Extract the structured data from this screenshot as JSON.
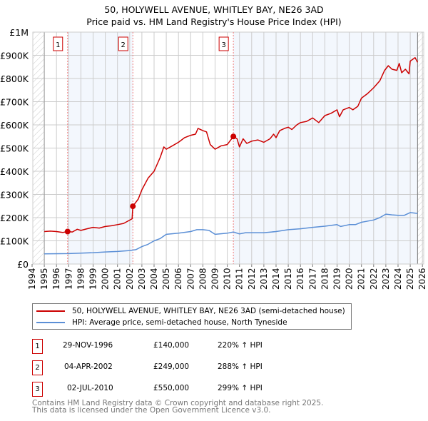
{
  "title_line1": "50, HOLYWELL AVENUE, WHITLEY BAY, NE26 3AD",
  "title_line2": "Price paid vs. HM Land Registry's House Price Index (HPI)",
  "legend": [
    {
      "label": "50, HOLYWELL AVENUE, WHITLEY BAY, NE26 3AD (semi-detached house)",
      "color": "#cc0000"
    },
    {
      "label": "HPI: Average price, semi-detached house, North Tyneside",
      "color": "#5b8fd6"
    }
  ],
  "sales": [
    {
      "num": "1",
      "date": "29-NOV-1996",
      "price": "£140,000",
      "hpi": "220% ↑ HPI"
    },
    {
      "num": "2",
      "date": "04-APR-2002",
      "price": "£249,000",
      "hpi": "288% ↑ HPI"
    },
    {
      "num": "3",
      "date": "02-JUL-2010",
      "price": "£550,000",
      "hpi": "299% ↑ HPI"
    }
  ],
  "footer_line1": "Contains HM Land Registry data © Crown copyright and database right 2025.",
  "footer_line2": "This data is licensed under the Open Government Licence v3.0.",
  "chart_data": {
    "type": "line",
    "xlim": [
      1994,
      2026
    ],
    "ylim": [
      0,
      1000000
    ],
    "x_ticks": [
      "1994",
      "1995",
      "1996",
      "1997",
      "1998",
      "1999",
      "2000",
      "2001",
      "2002",
      "2003",
      "2004",
      "2005",
      "2006",
      "2007",
      "2008",
      "2009",
      "2010",
      "2011",
      "2012",
      "2013",
      "2014",
      "2015",
      "2016",
      "2017",
      "2018",
      "2019",
      "2020",
      "2021",
      "2022",
      "2023",
      "2024",
      "2025",
      "2026"
    ],
    "y_ticks": [
      {
        "v": 0,
        "label": "£0"
      },
      {
        "v": 100000,
        "label": "£100K"
      },
      {
        "v": 200000,
        "label": "£200K"
      },
      {
        "v": 300000,
        "label": "£300K"
      },
      {
        "v": 400000,
        "label": "£400K"
      },
      {
        "v": 500000,
        "label": "£500K"
      },
      {
        "v": 600000,
        "label": "£600K"
      },
      {
        "v": 700000,
        "label": "£700K"
      },
      {
        "v": 800000,
        "label": "£800K"
      },
      {
        "v": 900000,
        "label": "£900K"
      },
      {
        "v": 1000000,
        "label": "£1M"
      }
    ],
    "data_start": 1995,
    "data_end": 2025.6,
    "sale_points": [
      {
        "x": 1996.91,
        "y": 140000
      },
      {
        "x": 2002.26,
        "y": 249000
      },
      {
        "x": 2010.5,
        "y": 550000
      }
    ],
    "series": [
      {
        "name": "50, HOLYWELL AVENUE, WHITLEY BAY, NE26 3AD (semi-detached house)",
        "color": "#cc0000",
        "x": [
          1995,
          1995.5,
          1996,
          1996.5,
          1996.91,
          1997.3,
          1997.7,
          1998,
          1998.5,
          1999,
          1999.5,
          2000,
          2000.5,
          2001,
          2001.5,
          2002.2,
          2002.26,
          2002.7,
          2003,
          2003.5,
          2004,
          2004.5,
          2004.8,
          2005,
          2005.5,
          2006,
          2006.5,
          2007,
          2007.4,
          2007.6,
          2008,
          2008.3,
          2008.6,
          2009,
          2009.5,
          2010,
          2010.5,
          2010.8,
          2011,
          2011.3,
          2011.6,
          2012,
          2012.5,
          2013,
          2013.5,
          2013.8,
          2014,
          2014.3,
          2014.7,
          2015,
          2015.3,
          2015.7,
          2016,
          2016.5,
          2017,
          2017.5,
          2018,
          2018.5,
          2019,
          2019.2,
          2019.5,
          2020,
          2020.3,
          2020.7,
          2021,
          2021.5,
          2022,
          2022.5,
          2022.9,
          2023.2,
          2023.5,
          2023.9,
          2024.1,
          2024.3,
          2024.6,
          2024.9,
          2025,
          2025.4,
          2025.6
        ],
        "y": [
          140000,
          142000,
          140000,
          136000,
          140000,
          138000,
          150000,
          145000,
          152000,
          158000,
          155000,
          162000,
          165000,
          170000,
          175000,
          195000,
          249000,
          280000,
          320000,
          370000,
          400000,
          460000,
          505000,
          495000,
          510000,
          525000,
          545000,
          555000,
          560000,
          585000,
          575000,
          570000,
          515000,
          495000,
          510000,
          515000,
          550000,
          540000,
          505000,
          540000,
          520000,
          530000,
          535000,
          525000,
          540000,
          560000,
          545000,
          575000,
          585000,
          590000,
          580000,
          600000,
          610000,
          615000,
          630000,
          610000,
          640000,
          650000,
          665000,
          635000,
          665000,
          675000,
          665000,
          680000,
          715000,
          735000,
          760000,
          790000,
          835000,
          855000,
          840000,
          835000,
          865000,
          825000,
          840000,
          820000,
          875000,
          890000,
          870000
        ]
      },
      {
        "name": "HPI: Average price, semi-detached house, North Tyneside",
        "color": "#5b8fd6",
        "x": [
          1995,
          1997,
          1998,
          1999,
          2000,
          2001,
          2002,
          2002.5,
          2003,
          2003.5,
          2004,
          2004.5,
          2005,
          2006,
          2007,
          2007.5,
          2008,
          2008.5,
          2009,
          2010,
          2010.5,
          2011,
          2011.5,
          2012,
          2013,
          2014,
          2015,
          2016,
          2017,
          2018,
          2019,
          2019.3,
          2020,
          2020.5,
          2021,
          2022,
          2022.5,
          2023,
          2023.5,
          2024,
          2024.5,
          2025,
          2025.6
        ],
        "y": [
          44000,
          45000,
          47000,
          49000,
          52000,
          54000,
          58000,
          62000,
          75000,
          85000,
          100000,
          110000,
          128000,
          133000,
          140000,
          148000,
          148000,
          145000,
          128000,
          133000,
          138000,
          130000,
          135000,
          135000,
          135000,
          140000,
          148000,
          152000,
          158000,
          163000,
          170000,
          162000,
          170000,
          170000,
          180000,
          190000,
          200000,
          215000,
          212000,
          210000,
          210000,
          222000,
          218000
        ]
      }
    ]
  }
}
